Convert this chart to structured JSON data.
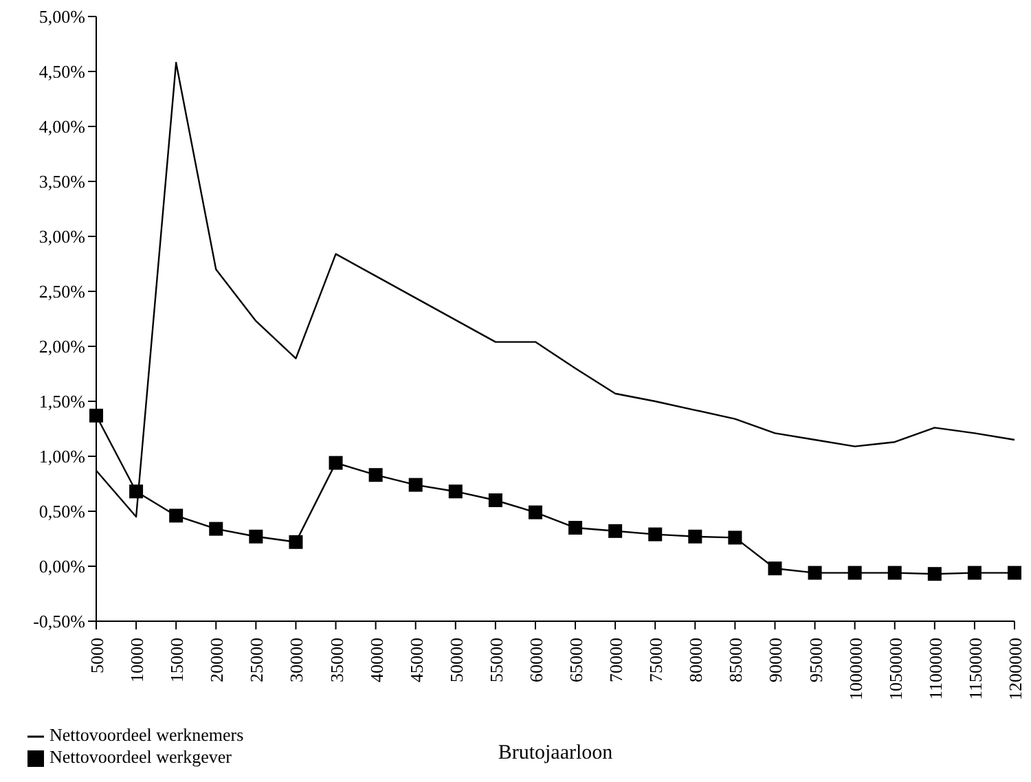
{
  "chart_data": {
    "type": "line",
    "xlabel": "Brutojaarloon",
    "categories": [
      "5000",
      "10000",
      "15000",
      "20000",
      "25000",
      "30000",
      "35000",
      "40000",
      "45000",
      "50000",
      "55000",
      "60000",
      "65000",
      "70000",
      "75000",
      "80000",
      "85000",
      "90000",
      "95000",
      "1000000",
      "1050000",
      "1100000",
      "1150000",
      "1200000"
    ],
    "series": [
      {
        "name": "Nettovoordeel werknemers",
        "color": "#000000",
        "marker": "none",
        "values": [
          0.87,
          0.45,
          4.58,
          2.7,
          2.23,
          1.89,
          2.84,
          2.64,
          2.44,
          2.24,
          2.04,
          2.04,
          1.8,
          1.57,
          1.5,
          1.42,
          1.34,
          1.21,
          1.15,
          1.09,
          1.13,
          1.26,
          1.21,
          1.15
        ]
      },
      {
        "name": "Nettovoordeel werkgever",
        "color": "#000000",
        "marker": "square",
        "values": [
          1.37,
          0.68,
          0.46,
          0.34,
          0.27,
          0.22,
          0.94,
          0.83,
          0.74,
          0.68,
          0.6,
          0.49,
          0.35,
          0.32,
          0.29,
          0.27,
          0.26,
          -0.02,
          -0.06,
          -0.06,
          -0.06,
          -0.07,
          -0.06,
          -0.06
        ]
      }
    ],
    "ylim": [
      -0.5,
      5
    ],
    "yticks": [
      {
        "value": -0.5,
        "label": "-0,50%"
      },
      {
        "value": 0,
        "label": "0,00%"
      },
      {
        "value": 0.5,
        "label": "0,50%"
      },
      {
        "value": 1,
        "label": "1,00%"
      },
      {
        "value": 1.5,
        "label": "1,50%"
      },
      {
        "value": 2,
        "label": "2,00%"
      },
      {
        "value": 2.5,
        "label": "2,50%"
      },
      {
        "value": 3,
        "label": "3,00%"
      },
      {
        "value": 3.5,
        "label": "3,50%"
      },
      {
        "value": 4,
        "label": "4,00%"
      },
      {
        "value": 4.5,
        "label": "4,50%"
      },
      {
        "value": 5,
        "label": "5,00%"
      }
    ],
    "legend": "bottom left",
    "line_style": "solid"
  }
}
